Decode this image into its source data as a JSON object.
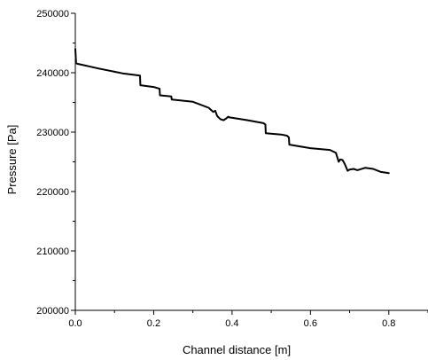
{
  "chart_data": {
    "type": "line",
    "title": "",
    "xlabel": "Channel distance [m]",
    "ylabel": "Pressure [Pa]",
    "xlim": [
      0.0,
      0.9
    ],
    "ylim": [
      200000,
      250000
    ],
    "x_ticks": [
      0.0,
      0.2,
      0.4,
      0.6,
      0.8
    ],
    "x_tick_labels": [
      "0.0",
      "0.2",
      "0.4",
      "0.6",
      "0.8"
    ],
    "y_ticks": [
      200000,
      210000,
      220000,
      230000,
      240000,
      250000
    ],
    "y_tick_labels": [
      "200000",
      "210000",
      "220000",
      "230000",
      "240000",
      "250000"
    ],
    "grid": false,
    "legend": "none",
    "line_color": "#000000",
    "series": [
      {
        "x": [
          0.0,
          0.002,
          0.005,
          0.06,
          0.12,
          0.165,
          0.166,
          0.2,
          0.21,
          0.215,
          0.216,
          0.245,
          0.246,
          0.3,
          0.34,
          0.352,
          0.357,
          0.362,
          0.37,
          0.378,
          0.385,
          0.39,
          0.392,
          0.44,
          0.48,
          0.485,
          0.486,
          0.525,
          0.54,
          0.545,
          0.546,
          0.6,
          0.65,
          0.665,
          0.672,
          0.676,
          0.682,
          0.688,
          0.695,
          0.7,
          0.71,
          0.72,
          0.74,
          0.76,
          0.78,
          0.8
        ],
        "y": [
          244000,
          241600,
          241500,
          240700,
          239900,
          239500,
          237900,
          237600,
          237400,
          237300,
          236200,
          236000,
          235500,
          235100,
          234100,
          233400,
          233600,
          232700,
          232200,
          232000,
          232300,
          232600,
          232500,
          232000,
          231500,
          231300,
          229800,
          229600,
          229400,
          229100,
          227900,
          227300,
          227000,
          226500,
          225000,
          225400,
          225300,
          224600,
          223500,
          223700,
          223800,
          223600,
          224000,
          223800,
          223300,
          223100
        ]
      }
    ]
  }
}
